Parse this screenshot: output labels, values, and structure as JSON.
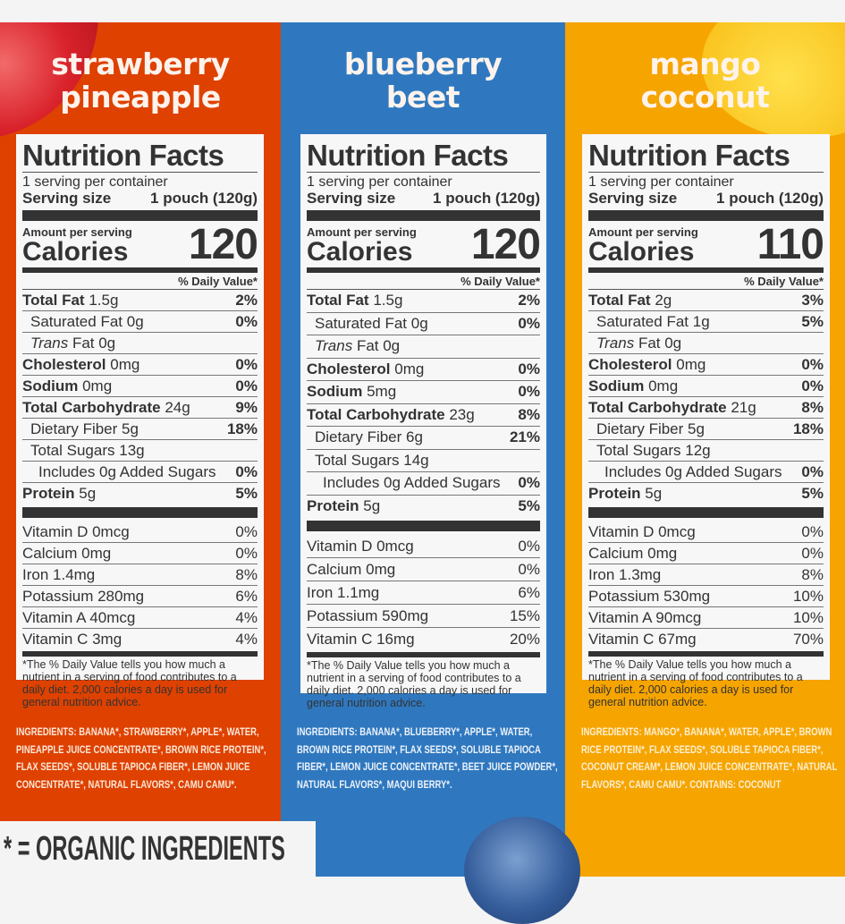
{
  "legend": {
    "text": "* = ORGANIC INGREDIENTS"
  },
  "colors": {
    "strawberry_panel": "#de4100",
    "blueberry_panel": "#2f78bf",
    "mango_panel": "#f6a400",
    "label_bg": "#f7f7f7",
    "label_text": "#333333"
  },
  "common": {
    "nf_title": "Nutrition Facts",
    "servings": "1 serving per container",
    "serving_size_label": "Serving size",
    "serving_size_value": "1 pouch (120g)",
    "amount_per_serving": "Amount per serving",
    "calories_label": "Calories",
    "dv_header": "% Daily Value*",
    "footnote": "*The % Daily Value tells you how much a nutrient in a serving of food contributes to a daily diet. 2,000 calories a day is used for general nutrition advice."
  },
  "products": [
    {
      "title_line1": "strawberry",
      "title_line2": "pineapple",
      "calories": "120",
      "nutrients": [
        {
          "name": "Total Fat",
          "amount": "1.5g",
          "dv": "2%"
        },
        {
          "name": "Saturated Fat",
          "amount": "0g",
          "dv": "0%"
        },
        {
          "name": "Trans",
          "amount": "Fat 0g",
          "dv": ""
        },
        {
          "name": "Cholesterol",
          "amount": "0mg",
          "dv": "0%"
        },
        {
          "name": "Sodium",
          "amount": "0mg",
          "dv": "0%"
        },
        {
          "name": "Total Carbohydrate",
          "amount": "24g",
          "dv": "9%"
        },
        {
          "name": "Dietary Fiber",
          "amount": "5g",
          "dv": "18%"
        },
        {
          "name": "Total Sugars",
          "amount": "13g",
          "dv": ""
        },
        {
          "name": "Includes 0g Added Sugars",
          "amount": "",
          "dv": "0%"
        },
        {
          "name": "Protein",
          "amount": "5g",
          "dv": "5%"
        }
      ],
      "vitamins": [
        {
          "name": "Vitamin D 0mcg",
          "dv": "0%"
        },
        {
          "name": "Calcium 0mg",
          "dv": "0%"
        },
        {
          "name": "Iron 1.4mg",
          "dv": "8%"
        },
        {
          "name": "Potassium 280mg",
          "dv": "6%"
        },
        {
          "name": "Vitamin A 40mcg",
          "dv": "4%"
        },
        {
          "name": "Vitamin C 3mg",
          "dv": "4%"
        }
      ],
      "ingredients": "INGREDIENTS: BANANA*, STRAWBERRY*, APPLE*, WATER, PINEAPPLE JUICE CONCENTRATE*, BROWN RICE PROTEIN*, FLAX SEEDS*, SOLUBLE TAPIOCA FIBER*, LEMON JUICE CONCENTRATE*, NATURAL FLAVORS*, CAMU CAMU*."
    },
    {
      "title_line1": "blueberry",
      "title_line2": "beet",
      "calories": "120",
      "nutrients": [
        {
          "name": "Total Fat",
          "amount": "1.5g",
          "dv": "2%"
        },
        {
          "name": "Saturated Fat",
          "amount": "0g",
          "dv": "0%"
        },
        {
          "name": "Trans",
          "amount": "Fat 0g",
          "dv": ""
        },
        {
          "name": "Cholesterol",
          "amount": "0mg",
          "dv": "0%"
        },
        {
          "name": "Sodium",
          "amount": "5mg",
          "dv": "0%"
        },
        {
          "name": "Total Carbohydrate",
          "amount": "23g",
          "dv": "8%"
        },
        {
          "name": "Dietary Fiber",
          "amount": "6g",
          "dv": "21%"
        },
        {
          "name": "Total Sugars",
          "amount": "14g",
          "dv": ""
        },
        {
          "name": "Includes 0g Added Sugars",
          "amount": "",
          "dv": "0%"
        },
        {
          "name": "Protein",
          "amount": "5g",
          "dv": "5%"
        }
      ],
      "vitamins": [
        {
          "name": "Vitamin D 0mcg",
          "dv": "0%"
        },
        {
          "name": "Calcium 0mg",
          "dv": "0%"
        },
        {
          "name": "Iron 1.1mg",
          "dv": "6%"
        },
        {
          "name": "Potassium 590mg",
          "dv": "15%"
        },
        {
          "name": "Vitamin C 16mg",
          "dv": "20%"
        }
      ],
      "ingredients": "INGREDIENTS: BANANA*, BLUEBERRY*, APPLE*, WATER, BROWN RICE PROTEIN*, FLAX SEEDS*, SOLUBLE TAPIOCA FIBER*, LEMON JUICE CONCENTRATE*, BEET JUICE POWDER*, NATURAL FLAVORS*, MAQUI BERRY*."
    },
    {
      "title_line1": "mango",
      "title_line2": "coconut",
      "calories": "110",
      "nutrients": [
        {
          "name": "Total Fat",
          "amount": "2g",
          "dv": "3%"
        },
        {
          "name": "Saturated Fat",
          "amount": "1g",
          "dv": "5%"
        },
        {
          "name": "Trans",
          "amount": "Fat 0g",
          "dv": ""
        },
        {
          "name": "Cholesterol",
          "amount": "0mg",
          "dv": "0%"
        },
        {
          "name": "Sodium",
          "amount": "0mg",
          "dv": "0%"
        },
        {
          "name": "Total Carbohydrate",
          "amount": "21g",
          "dv": "8%"
        },
        {
          "name": "Dietary Fiber",
          "amount": "5g",
          "dv": "18%"
        },
        {
          "name": "Total Sugars",
          "amount": "12g",
          "dv": ""
        },
        {
          "name": "Includes 0g Added Sugars",
          "amount": "",
          "dv": "0%"
        },
        {
          "name": "Protein",
          "amount": "5g",
          "dv": "5%"
        }
      ],
      "vitamins": [
        {
          "name": "Vitamin D 0mcg",
          "dv": "0%"
        },
        {
          "name": "Calcium 0mg",
          "dv": "0%"
        },
        {
          "name": "Iron 1.3mg",
          "dv": "8%"
        },
        {
          "name": "Potassium 530mg",
          "dv": "10%"
        },
        {
          "name": "Vitamin A 90mcg",
          "dv": "10%"
        },
        {
          "name": "Vitamin C 67mg",
          "dv": "70%"
        }
      ],
      "ingredients": "INGREDIENTS: MANGO*, BANANA*, WATER, APPLE*, BROWN RICE PROTEIN*, FLAX SEEDS*, SOLUBLE TAPIOCA FIBER*, COCONUT CREAM*, LEMON JUICE CONCENTRATE*, NATURAL FLAVORS*, CAMU CAMU*. CONTAINS: COCONUT"
    }
  ]
}
